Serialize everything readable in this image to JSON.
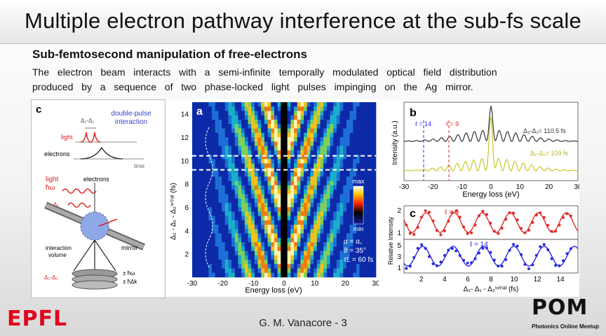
{
  "slide": {
    "title": "Multiple electron pathway interference at the sub-fs scale",
    "subtitle": "Sub-femtosecond manipulation  of free-electrons",
    "body_line1": "The  electron  beam  interacts  with  a  semi-infinite  temporally  modulated  optical  field  distribution",
    "body_line2": "produced  by  a  sequence  of  two  phase-locked  light  pulses  impinging  on  the  Ag  mirror.",
    "footer": "G. M. Vanacore  - 3",
    "logo_left": "EPFL",
    "logo_right": "POM",
    "logo_right_sub": "Photonics Online Meetup"
  },
  "panel_c": {
    "letter": "c",
    "delay_label": "Δ₂-Δ₁",
    "title_line1": "double-pulse",
    "title_line2": "interaction",
    "light_label": "light",
    "electrons_label": "electrons",
    "time_label": "time",
    "light2_label": "light",
    "hw_label": "ħω",
    "delay2_label": "Δ₂-Δ₁",
    "electrons2_label": "electrons",
    "interaction_label": "interaction",
    "volume_label": "volume",
    "mirror_label": "mirror",
    "delay3_label": "Δ₂-Δ₁",
    "pm_hw": "± ħω",
    "pm_hdk": "± ħΔk"
  },
  "panel_a": {
    "letter": "a",
    "ylabel": "Δ₂ - Δ₁ - Δ₂ⁱⁿⁱᵗⁱᵃˡ (fs)",
    "xlabel": "Energy loss (eV)",
    "xticks": [
      "-30",
      "-20",
      "-10",
      "0",
      "10",
      "20",
      "30"
    ],
    "yticks": [
      "2",
      "4",
      "6",
      "8",
      "10",
      "12",
      "14"
    ],
    "cbar_max": "max",
    "cbar_min": "min",
    "param1": "α = α꜀",
    "param2": "ϑ = 35°",
    "param3": "τL = 60 fs",
    "dashed_y": [
      9.2,
      10.4
    ]
  },
  "panel_b": {
    "letter": "b",
    "ylabel": "Intensity (a.u.)",
    "xlabel": "Energy loss (eV)",
    "xticks": [
      "-30",
      "-20",
      "-10",
      "0",
      "10",
      "20",
      "30"
    ],
    "l14_label": "ℓ = 14",
    "l9_label": "ℓ = 9",
    "series1_label": "Δ₂-Δ₁= 110.5 fs",
    "series2_label": "Δ₂-Δ₁= 109 fs",
    "series1_color": "#333333",
    "series2_color": "#c8c82a",
    "l14_color": "#2a2ae0",
    "l9_color": "#e02a2a"
  },
  "panel_c2": {
    "letter": "c",
    "ylabel": "Relative Intensity",
    "xlabel": "Δ₂- Δ₁ - Δ₂ⁱⁿⁱᵗⁱᵃˡ (fs)",
    "xticks": [
      "2",
      "4",
      "6",
      "8",
      "10",
      "12",
      "14"
    ],
    "top_label": "ℓ = 9",
    "bottom_label": "ℓ = 14",
    "top_yticks": [
      "2",
      "1"
    ],
    "bottom_yticks": [
      "5",
      "3",
      "1"
    ],
    "top_color": "#e02a2a",
    "bottom_color": "#2a2ae0"
  }
}
